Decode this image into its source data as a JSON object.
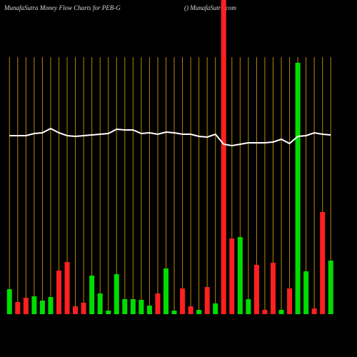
{
  "chart_data": {
    "type": "money-flow",
    "title": "MunafaSutra  Money Flow  Charts for PEB-G",
    "subtitle": "() MunafaSutra.com",
    "categories": [
      null,
      null,
      null,
      null,
      null,
      null,
      null,
      null,
      null,
      null,
      null,
      null,
      null,
      null,
      null,
      null,
      null,
      null,
      null,
      null,
      null,
      null,
      null,
      null,
      null,
      null,
      null,
      null,
      null,
      null,
      null,
      null,
      null,
      null,
      null,
      null,
      null,
      null,
      null,
      null
    ],
    "ylim": [
      0,
      440
    ],
    "grid": true,
    "grid_color": "#b8860b",
    "line_color": "#ffffff",
    "bar_colors": [
      "#00dd00",
      "#ff2020",
      "#ff2020",
      "#00dd00",
      "#00dd00",
      "#00dd00",
      "#ff2020",
      "#ff2020",
      "#ff2020",
      "#ff2020",
      "#00dd00",
      "#00dd00",
      "#00dd00",
      "#00dd00",
      "#00dd00",
      "#00dd00",
      "#00dd00",
      "#00dd00",
      "#ff2020",
      "#00dd00",
      "#00dd00",
      "#ff2020",
      "#ff2020",
      "#00dd00",
      "#ff2020",
      "#00dd00",
      "#ff2020",
      "#ff2020",
      "#00dd00",
      "#00dd00",
      "#ff2020",
      "#ff2020",
      "#ff2020",
      "#00dd00",
      "#ff2020",
      "#00dd00",
      "#00dd00",
      "#ff2020",
      "#ff2020",
      "#00dd00"
    ],
    "values": [
      35,
      17,
      23,
      25,
      19,
      24,
      61,
      73,
      11,
      16,
      54,
      29,
      5,
      56,
      21,
      21,
      20,
      12,
      29,
      64,
      5,
      36,
      11,
      6,
      38,
      15,
      440,
      106,
      108,
      21,
      69,
      6,
      72,
      6,
      36,
      352,
      60,
      8,
      143,
      75
    ],
    "line": [
      250,
      250,
      250,
      253,
      254,
      260,
      254,
      250,
      249,
      250,
      251,
      252,
      253,
      259,
      258,
      258,
      253,
      254,
      252,
      255,
      254,
      252,
      252,
      249,
      248,
      252,
      238,
      236,
      238,
      240,
      240,
      240,
      241,
      245,
      239,
      249,
      250,
      254,
      252,
      251
    ]
  }
}
